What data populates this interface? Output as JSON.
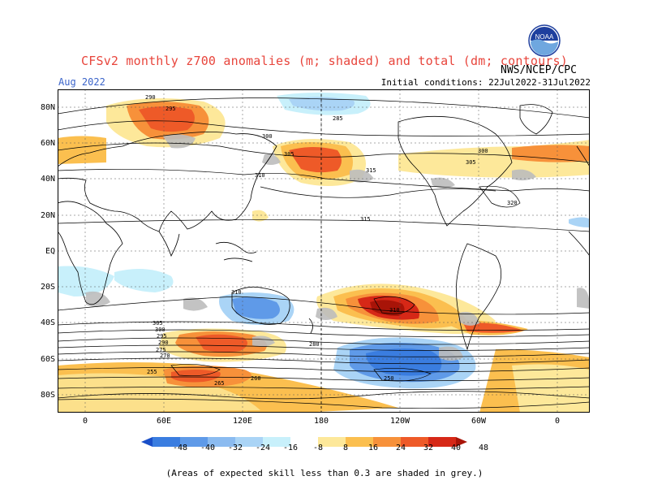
{
  "header": {
    "title": "CFSv2 monthly z700 anomalies (m; shaded) and total (dm; contours)",
    "month": "Aug 2022",
    "initial_conditions": "Initial conditions: 22Jul2022-31Jul2022",
    "agency": "NWS/NCEP/CPC",
    "logo_text": "NOAA"
  },
  "axes": {
    "lat_labels": [
      "80N",
      "60N",
      "40N",
      "20N",
      "EQ",
      "20S",
      "40S",
      "60S",
      "80S"
    ],
    "lon_labels": [
      "0",
      "60E",
      "120E",
      "180",
      "120W",
      "60W",
      "0"
    ]
  },
  "contour_labels": [
    "290",
    "295",
    "300",
    "305",
    "310",
    "315",
    "320",
    "300",
    "305",
    "310",
    "315",
    "310",
    "305",
    "300",
    "295",
    "290",
    "285",
    "280",
    "275",
    "270",
    "265",
    "260",
    "255",
    "250"
  ],
  "colorbar": {
    "labels": [
      "-48",
      "-40",
      "-32",
      "-24",
      "-16",
      "-8",
      "8",
      "16",
      "24",
      "32",
      "40",
      "48"
    ],
    "colors": [
      "#1a4fc8",
      "#3a7de0",
      "#5f9ae8",
      "#8bbbf0",
      "#aad4f6",
      "#c8f0fb",
      "#ffffff",
      "#fde89a",
      "#fbbf4f",
      "#f7913a",
      "#ee5a28",
      "#d62817",
      "#a81408"
    ]
  },
  "footnote": "(Areas of expected skill less than 0.3 are shaded in grey.)"
}
